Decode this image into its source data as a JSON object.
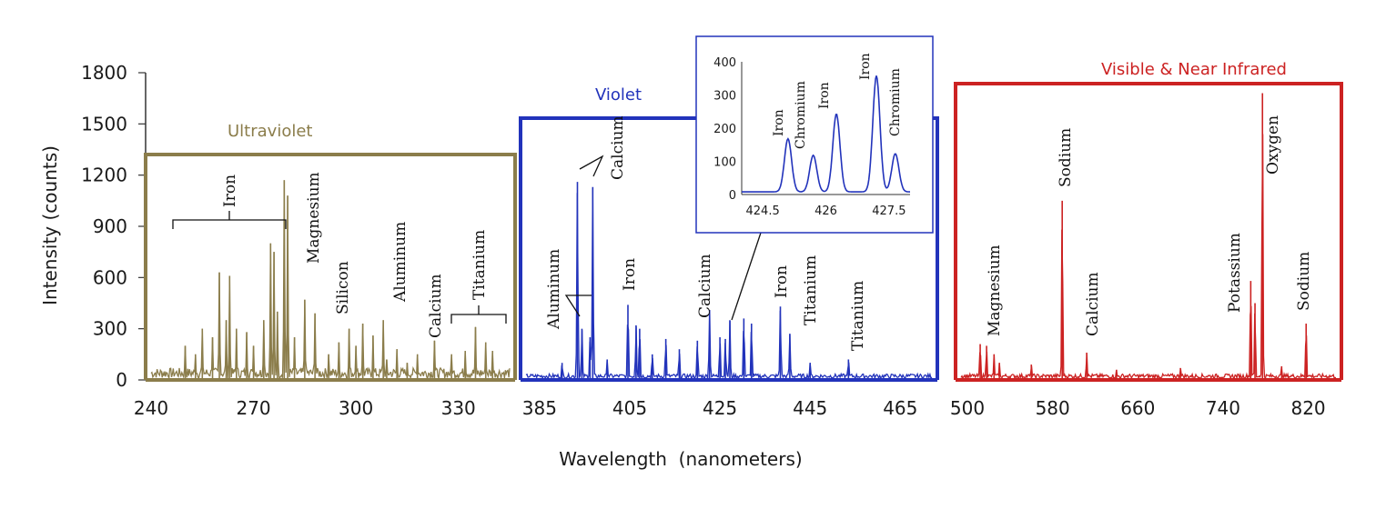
{
  "chart_data": {
    "type": "line",
    "xlabel": "Wavelength  (nanometers)",
    "ylabel": "Intensity (counts)",
    "ylim": [
      0,
      1800
    ],
    "y_ticks": [
      0,
      300,
      600,
      900,
      1200,
      1500,
      1800
    ],
    "grid": false,
    "panels": [
      {
        "name": "Ultraviolet",
        "color": "#8b7d4b",
        "xlim": [
          240,
          345
        ],
        "x_ticks": [
          240,
          270,
          300,
          330
        ],
        "peaks": [
          [
            250,
            200
          ],
          [
            253,
            150
          ],
          [
            255,
            300
          ],
          [
            258,
            250
          ],
          [
            260,
            630
          ],
          [
            262,
            350
          ],
          [
            263,
            610
          ],
          [
            265,
            300
          ],
          [
            268,
            280
          ],
          [
            270,
            200
          ],
          [
            273,
            350
          ],
          [
            275,
            800
          ],
          [
            276,
            750
          ],
          [
            277,
            400
          ],
          [
            279,
            1170
          ],
          [
            280,
            1080
          ],
          [
            282,
            250
          ],
          [
            285,
            470
          ],
          [
            288,
            390
          ],
          [
            292,
            150
          ],
          [
            295,
            220
          ],
          [
            298,
            300
          ],
          [
            300,
            200
          ],
          [
            302,
            330
          ],
          [
            305,
            260
          ],
          [
            308,
            350
          ],
          [
            309,
            120
          ],
          [
            312,
            180
          ],
          [
            315,
            100
          ],
          [
            318,
            150
          ],
          [
            323,
            230
          ],
          [
            328,
            150
          ],
          [
            332,
            170
          ],
          [
            335,
            310
          ],
          [
            338,
            220
          ],
          [
            340,
            170
          ]
        ],
        "labels": [
          "Iron",
          "Magnesium",
          "Silicon",
          "Aluminum",
          "Calcium",
          "Titanium"
        ]
      },
      {
        "name": "Violet",
        "color": "#2233bb",
        "xlim": [
          382,
          472
        ],
        "x_ticks": [
          385,
          405,
          425,
          445,
          465
        ],
        "peaks": [
          [
            390,
            100
          ],
          [
            393.4,
            1160
          ],
          [
            394.4,
            300
          ],
          [
            396.2,
            250
          ],
          [
            396.8,
            1130
          ],
          [
            400,
            120
          ],
          [
            404.6,
            440
          ],
          [
            406.4,
            320
          ],
          [
            407.2,
            300
          ],
          [
            410,
            150
          ],
          [
            413,
            240
          ],
          [
            416,
            180
          ],
          [
            420,
            230
          ],
          [
            422.7,
            410
          ],
          [
            425,
            250
          ],
          [
            426.2,
            240
          ],
          [
            427.2,
            350
          ],
          [
            430.3,
            360
          ],
          [
            432,
            330
          ],
          [
            438.4,
            430
          ],
          [
            440.5,
            270
          ],
          [
            445,
            100
          ],
          [
            453.5,
            120
          ]
        ],
        "labels": [
          "Aluminum",
          "Calcium",
          "Iron",
          "Calcium",
          "Iron",
          "Titanium",
          "Titanium"
        ]
      },
      {
        "name": "Visible  & Near Infrared",
        "color": "#cc2222",
        "xlim": [
          494,
          846
        ],
        "x_ticks": [
          500,
          580,
          660,
          740,
          820
        ],
        "peaks": [
          [
            512,
            210
          ],
          [
            518,
            200
          ],
          [
            525,
            150
          ],
          [
            530,
            100
          ],
          [
            560,
            90
          ],
          [
            589,
            1050
          ],
          [
            612,
            160
          ],
          [
            640,
            60
          ],
          [
            700,
            70
          ],
          [
            766,
            580
          ],
          [
            770,
            450
          ],
          [
            777,
            1680
          ],
          [
            795,
            80
          ],
          [
            818,
            330
          ]
        ],
        "labels": [
          "Magnesium",
          "Sodium",
          "Calcium",
          "Potassium",
          "Oxygen",
          "Sodium"
        ]
      }
    ],
    "inset": {
      "xlim": [
        424,
        428
      ],
      "ylim": [
        0,
        400
      ],
      "x_ticks": [
        424.5,
        426,
        427.5
      ],
      "y_ticks": [
        0,
        100,
        200,
        300,
        400
      ],
      "peaks": [
        [
          425.1,
          160
        ],
        [
          425.7,
          110
        ],
        [
          426.25,
          235
        ],
        [
          427.2,
          350
        ],
        [
          427.65,
          115
        ]
      ],
      "labels": [
        "Iron",
        "Chromium",
        "Iron",
        "Iron",
        "Chromium"
      ]
    }
  }
}
